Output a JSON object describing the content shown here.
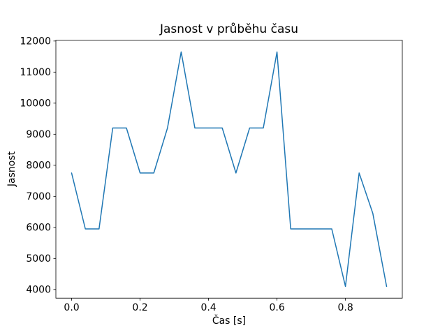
{
  "chart_data": {
    "type": "line",
    "title": "Jasnost v průběhu času",
    "xlabel": "Čas [s]",
    "ylabel": "Jasnost",
    "x": [
      0.0,
      0.04,
      0.08,
      0.12,
      0.16,
      0.2,
      0.24,
      0.28,
      0.32,
      0.36,
      0.4,
      0.44,
      0.48,
      0.52,
      0.56,
      0.6,
      0.64,
      0.68,
      0.72,
      0.76,
      0.8,
      0.84,
      0.88,
      0.92
    ],
    "y": [
      7750,
      5950,
      5950,
      9200,
      9200,
      7750,
      7750,
      9200,
      11650,
      9200,
      9200,
      9200,
      7750,
      9200,
      9200,
      11650,
      5950,
      5950,
      5950,
      5950,
      4100,
      7750,
      6450,
      4100
    ],
    "xlim": [
      -0.046,
      0.966
    ],
    "ylim": [
      3722,
      12027
    ],
    "xticks": [
      0.0,
      0.2,
      0.4,
      0.6,
      0.8
    ],
    "xtick_labels": [
      "0.0",
      "0.2",
      "0.4",
      "0.6",
      "0.8"
    ],
    "yticks": [
      4000,
      5000,
      6000,
      7000,
      8000,
      9000,
      10000,
      11000,
      12000
    ],
    "ytick_labels": [
      "4000",
      "5000",
      "6000",
      "7000",
      "8000",
      "9000",
      "10000",
      "11000",
      "12000"
    ],
    "line_color": "#1f77b4",
    "axis_color": "#000000",
    "background": "#ffffff",
    "grid": false,
    "legend": "none"
  }
}
